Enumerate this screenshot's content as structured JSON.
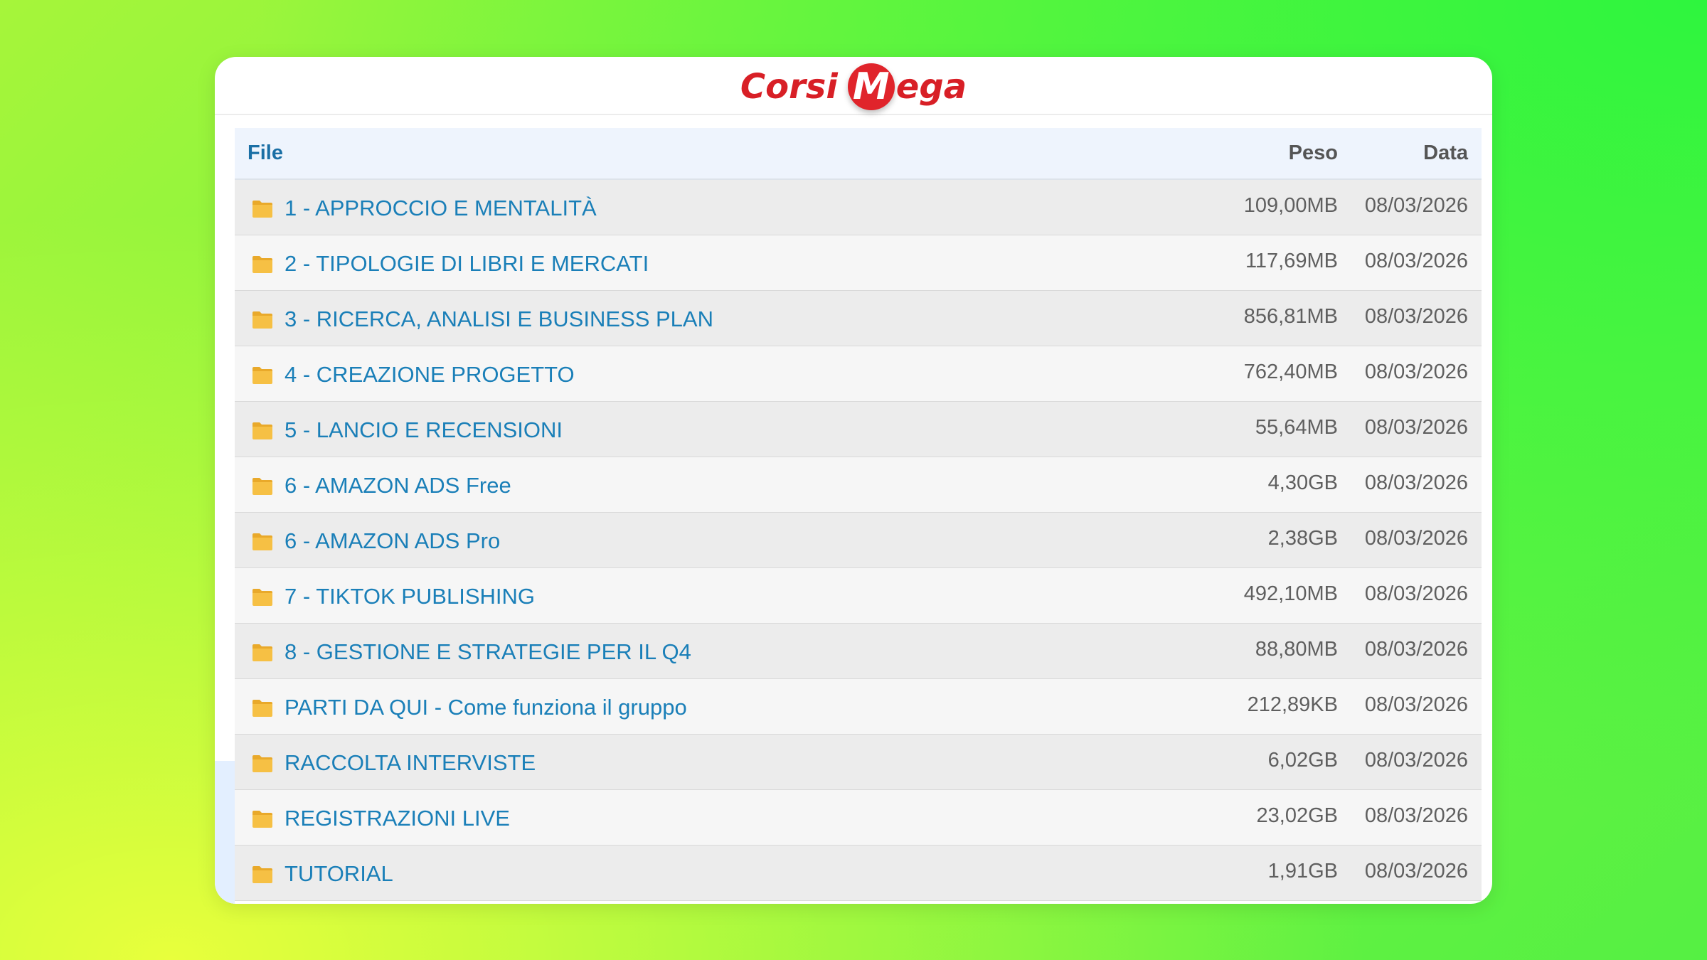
{
  "brand": {
    "part1": "Corsi",
    "m_letter": "M",
    "part2": "ega",
    "color": "#d81f26"
  },
  "table": {
    "headers": {
      "file": "File",
      "size": "Peso",
      "date": "Data"
    },
    "icon": "folder-icon",
    "rows": [
      {
        "name": "1 - APPROCCIO E MENTALITÀ",
        "size": "109,00MB",
        "date": "08/03/2026"
      },
      {
        "name": "2 - TIPOLOGIE DI LIBRI E MERCATI",
        "size": "117,69MB",
        "date": "08/03/2026"
      },
      {
        "name": "3 - RICERCA, ANALISI E BUSINESS PLAN",
        "size": "856,81MB",
        "date": "08/03/2026"
      },
      {
        "name": "4 - CREAZIONE PROGETTO",
        "size": "762,40MB",
        "date": "08/03/2026"
      },
      {
        "name": "5 - LANCIO E RECENSIONI",
        "size": "55,64MB",
        "date": "08/03/2026"
      },
      {
        "name": "6 - AMAZON ADS Free",
        "size": "4,30GB",
        "date": "08/03/2026"
      },
      {
        "name": "6 - AMAZON ADS Pro",
        "size": "2,38GB",
        "date": "08/03/2026"
      },
      {
        "name": "7 - TIKTOK PUBLISHING",
        "size": "492,10MB",
        "date": "08/03/2026"
      },
      {
        "name": "8 - GESTIONE E STRATEGIE PER IL Q4",
        "size": "88,80MB",
        "date": "08/03/2026"
      },
      {
        "name": "PARTI DA QUI - Come funziona il gruppo",
        "size": "212,89KB",
        "date": "08/03/2026"
      },
      {
        "name": "RACCOLTA INTERVISTE",
        "size": "6,02GB",
        "date": "08/03/2026"
      },
      {
        "name": "REGISTRAZIONI LIVE",
        "size": "23,02GB",
        "date": "08/03/2026"
      },
      {
        "name": "TUTORIAL",
        "size": "1,91GB",
        "date": "08/03/2026"
      }
    ]
  },
  "colors": {
    "link": "#1a7fb8",
    "folder": "#f6c044",
    "header_bg": "#eef4fd"
  }
}
